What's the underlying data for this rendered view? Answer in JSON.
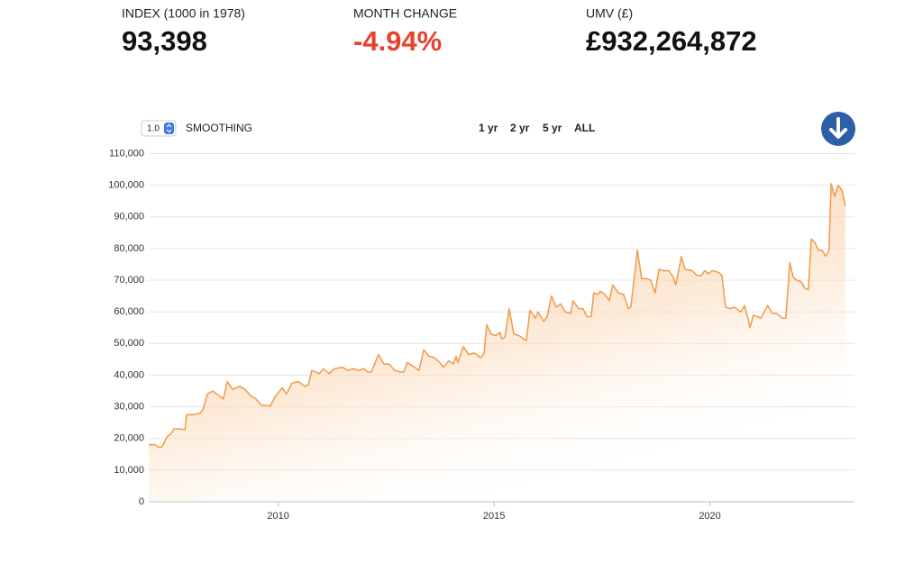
{
  "stats": [
    {
      "label": "INDEX (1000 in 1978)",
      "value": "93,398"
    },
    {
      "label": "MONTH CHANGE",
      "value": "-4.94%"
    },
    {
      "label": "UMV (£)",
      "value": "£932,264,872"
    }
  ],
  "controls": {
    "smoothing_value": "1.0",
    "smoothing_label": "SMOOTHING",
    "ranges": [
      "1 yr",
      "2 yr",
      "5 yr",
      "ALL"
    ]
  },
  "chart_data": {
    "type": "area",
    "color": "#f09a4a",
    "grid": true,
    "xlim": [
      2007,
      2023.35
    ],
    "ylim": [
      0,
      113000
    ],
    "xticks": [
      2010,
      2015,
      2020
    ],
    "yticks": [
      0,
      {
        "value": 10000,
        "label": "10,000"
      },
      {
        "value": 20000,
        "label": "20,000"
      },
      {
        "value": 30000,
        "label": "30,000"
      },
      {
        "value": 40000,
        "label": "40,000"
      },
      {
        "value": 50000,
        "label": "50,000"
      },
      {
        "value": 60000,
        "label": "60,000"
      },
      {
        "value": 70000,
        "label": "70,000"
      },
      {
        "value": 80000,
        "label": "80,000"
      },
      {
        "value": 90000,
        "label": "90,000"
      },
      {
        "value": 100000,
        "label": "100,000"
      },
      {
        "value": 110000,
        "label": "110,000"
      }
    ],
    "x": [
      2007.0,
      2007.15,
      2007.23,
      2007.31,
      2007.42,
      2007.52,
      2007.58,
      2007.73,
      2007.84,
      2007.88,
      2008.04,
      2008.19,
      2008.25,
      2008.36,
      2008.48,
      2008.63,
      2008.73,
      2008.82,
      2008.94,
      2009.03,
      2009.11,
      2009.23,
      2009.36,
      2009.48,
      2009.61,
      2009.82,
      2009.92,
      2010.09,
      2010.19,
      2010.32,
      2010.47,
      2010.61,
      2010.7,
      2010.78,
      2010.95,
      2011.05,
      2011.18,
      2011.3,
      2011.49,
      2011.61,
      2011.74,
      2011.86,
      2011.99,
      2012.07,
      2012.16,
      2012.32,
      2012.45,
      2012.57,
      2012.7,
      2012.83,
      2012.91,
      2012.99,
      2013.16,
      2013.26,
      2013.37,
      2013.49,
      2013.62,
      2013.74,
      2013.83,
      2013.95,
      2014.06,
      2014.12,
      2014.16,
      2014.29,
      2014.41,
      2014.54,
      2014.64,
      2014.7,
      2014.77,
      2014.83,
      2014.93,
      2015.04,
      2015.14,
      2015.18,
      2015.25,
      2015.35,
      2015.46,
      2015.58,
      2015.67,
      2015.75,
      2015.83,
      2015.96,
      2016.02,
      2016.15,
      2016.23,
      2016.33,
      2016.44,
      2016.54,
      2016.65,
      2016.77,
      2016.83,
      2016.96,
      2017.06,
      2017.15,
      2017.25,
      2017.31,
      2017.4,
      2017.46,
      2017.57,
      2017.67,
      2017.75,
      2017.88,
      2018.0,
      2018.11,
      2018.17,
      2018.32,
      2018.42,
      2018.53,
      2018.63,
      2018.73,
      2018.82,
      2018.92,
      2019.05,
      2019.15,
      2019.21,
      2019.34,
      2019.42,
      2019.59,
      2019.7,
      2019.8,
      2019.88,
      2019.97,
      2020.05,
      2020.2,
      2020.28,
      2020.36,
      2020.47,
      2020.57,
      2020.66,
      2020.72,
      2020.8,
      2020.89,
      2020.93,
      2021.01,
      2021.09,
      2021.18,
      2021.26,
      2021.34,
      2021.45,
      2021.55,
      2021.68,
      2021.76,
      2021.85,
      2021.93,
      2022.01,
      2022.12,
      2022.2,
      2022.28,
      2022.35,
      2022.43,
      2022.51,
      2022.6,
      2022.68,
      2022.76,
      2022.81,
      2022.89,
      2022.97,
      2023.06,
      2023.14
    ],
    "values": [
      18000,
      18000,
      17200,
      17400,
      20500,
      21500,
      23000,
      23000,
      22700,
      27500,
      27500,
      28000,
      29000,
      34000,
      35000,
      33500,
      32500,
      38000,
      35500,
      36000,
      36500,
      35500,
      33500,
      32500,
      30500,
      30300,
      33000,
      36000,
      34000,
      37500,
      38000,
      36500,
      37000,
      41500,
      40500,
      42000,
      40500,
      42000,
      42500,
      41500,
      42000,
      41500,
      42000,
      41000,
      41000,
      46500,
      43500,
      43500,
      41500,
      41000,
      41000,
      44000,
      42500,
      41500,
      48000,
      46000,
      45500,
      44000,
      42500,
      44500,
      43500,
      46000,
      44000,
      49000,
      46500,
      47000,
      46000,
      45500,
      47000,
      56000,
      53000,
      52500,
      53500,
      51500,
      52000,
      61000,
      53000,
      52500,
      51500,
      51000,
      60500,
      58000,
      60000,
      57000,
      58500,
      65000,
      61500,
      62500,
      60000,
      59500,
      63500,
      61000,
      61000,
      58500,
      58500,
      66000,
      65500,
      66500,
      65500,
      63500,
      68500,
      66000,
      65500,
      61000,
      61500,
      79500,
      70500,
      70500,
      70000,
      66000,
      73500,
      73000,
      73000,
      71000,
      68500,
      77500,
      73500,
      73000,
      71500,
      71500,
      73000,
      72000,
      73000,
      72500,
      71500,
      61500,
      61000,
      61500,
      60500,
      60000,
      62000,
      57500,
      55000,
      59000,
      58500,
      58000,
      60000,
      62000,
      59500,
      59500,
      58000,
      58000,
      75500,
      71000,
      70000,
      69500,
      67500,
      67000,
      83000,
      82000,
      79500,
      79500,
      77500,
      79500,
      100500,
      96500,
      100000,
      98500,
      93398
    ]
  }
}
